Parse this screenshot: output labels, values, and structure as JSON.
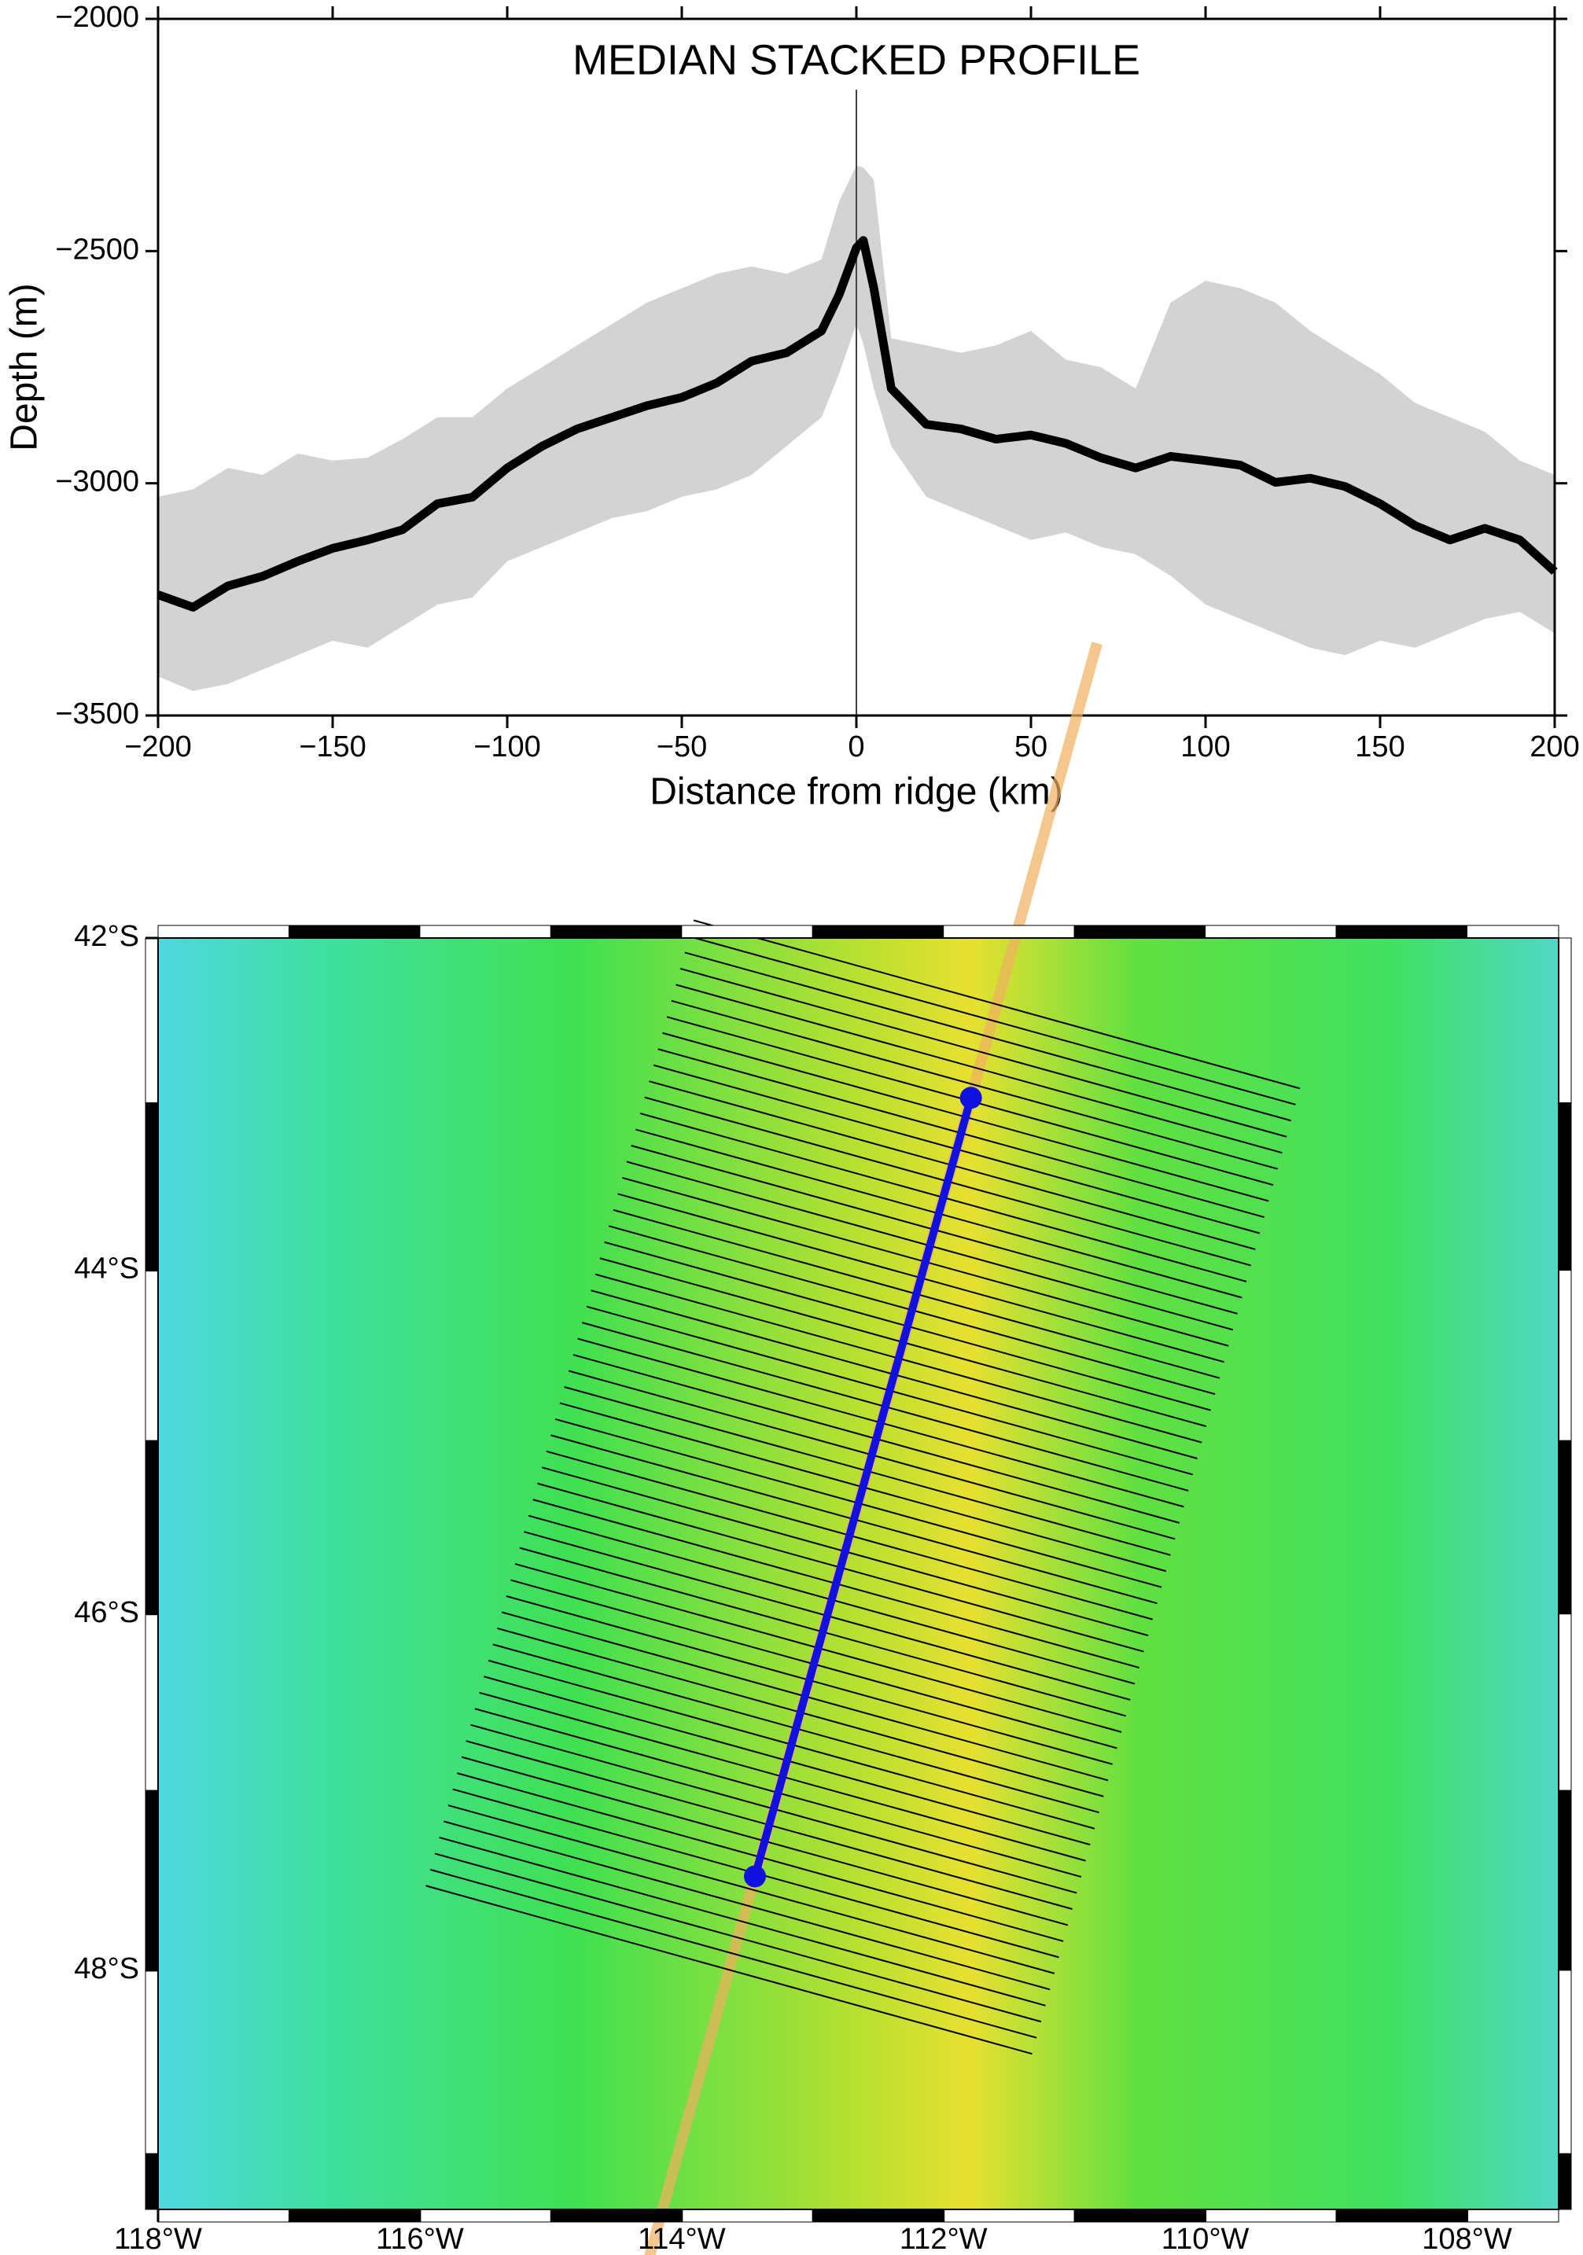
{
  "chart_data": [
    {
      "type": "line",
      "title": "MEDIAN STACKED PROFILE",
      "x_label": "Distance from ridge (km)",
      "y_label": "Depth (m)",
      "x": [
        -200,
        -190,
        -180,
        -170,
        -160,
        -150,
        -140,
        -130,
        -120,
        -110,
        -100,
        -90,
        -80,
        -70,
        -60,
        -50,
        -40,
        -30,
        -20,
        -10,
        -5,
        0,
        2,
        5,
        10,
        20,
        30,
        40,
        50,
        60,
        70,
        80,
        90,
        100,
        110,
        120,
        130,
        140,
        150,
        160,
        170,
        180,
        190,
        200
      ],
      "median": {
        "color": "#000000",
        "values": [
          -3240,
          -3267,
          -3221,
          -3200,
          -3168,
          -3140,
          -3122,
          -3100,
          -3044,
          -3030,
          -2967,
          -2920,
          -2883,
          -2858,
          -2833,
          -2815,
          -2784,
          -2737,
          -2719,
          -2672,
          -2595,
          -2493,
          -2477,
          -2580,
          -2796,
          -2873,
          -2883,
          -2905,
          -2896,
          -2914,
          -2945,
          -2967,
          -2942,
          -2951,
          -2961,
          -2998,
          -2989,
          -3007,
          -3044,
          -3091,
          -3122,
          -3097,
          -3122,
          -3190
        ]
      },
      "envelope": {
        "color": "#d3d3d3",
        "upper": [
          -3029,
          -3013,
          -2967,
          -2982,
          -2936,
          -2951,
          -2945,
          -2905,
          -2858,
          -2858,
          -2796,
          -2750,
          -2703,
          -2657,
          -2611,
          -2580,
          -2549,
          -2533,
          -2549,
          -2518,
          -2394,
          -2316,
          -2320,
          -2347,
          -2688,
          -2703,
          -2719,
          -2703,
          -2672,
          -2734,
          -2750,
          -2796,
          -2611,
          -2564,
          -2580,
          -2611,
          -2672,
          -2719,
          -2765,
          -2827,
          -2858,
          -2889,
          -2951,
          -2982
        ],
        "lower": [
          -3416,
          -3447,
          -3432,
          -3401,
          -3370,
          -3339,
          -3354,
          -3308,
          -3261,
          -3246,
          -3168,
          -3137,
          -3106,
          -3075,
          -3060,
          -3029,
          -3013,
          -2982,
          -2920,
          -2858,
          -2765,
          -2657,
          -2700,
          -2796,
          -2920,
          -3029,
          -3060,
          -3091,
          -3122,
          -3106,
          -3137,
          -3153,
          -3199,
          -3261,
          -3292,
          -3323,
          -3354,
          -3370,
          -3339,
          -3354,
          -3323,
          -3292,
          -3277,
          -3323
        ]
      },
      "vline": 0,
      "xlim": [
        -200,
        200
      ],
      "xticks": [
        {
          "value": -200,
          "label": "−200"
        },
        {
          "value": -150,
          "label": "−150"
        },
        {
          "value": -100,
          "label": "−100"
        },
        {
          "value": -50,
          "label": "−50"
        },
        0,
        50,
        100,
        150,
        200
      ],
      "ylim": [
        -3500,
        -2000
      ],
      "yticks": [
        {
          "value": -3500,
          "label": "−3500"
        },
        {
          "value": -3000,
          "label": "−3000"
        },
        {
          "value": -2500,
          "label": "−2500"
        },
        {
          "value": -2000,
          "label": "−2000"
        }
      ]
    },
    {
      "type": "map",
      "ridge": {
        "color": "#1010e0",
        "lon": [
          -111.79,
          -113.44
        ],
        "lat": [
          -42.97,
          -47.48
        ]
      },
      "xlim": [
        -118,
        -107.3
      ],
      "xticks": [
        {
          "value": -118,
          "label": "118°W"
        },
        {
          "value": -116,
          "label": "116°W"
        },
        {
          "value": -114,
          "label": "114°W"
        },
        {
          "value": -112,
          "label": "112°W"
        },
        {
          "value": -110,
          "label": "110°W"
        },
        {
          "value": -108,
          "label": "108°W"
        }
      ],
      "ylim": [
        -49.3,
        -42
      ],
      "yticks": [
        {
          "value": -42,
          "label": "42°S"
        },
        {
          "value": -44,
          "label": "44°S"
        },
        {
          "value": -46,
          "label": "46°S"
        },
        {
          "value": -48,
          "label": "48°S"
        }
      ]
    }
  ]
}
